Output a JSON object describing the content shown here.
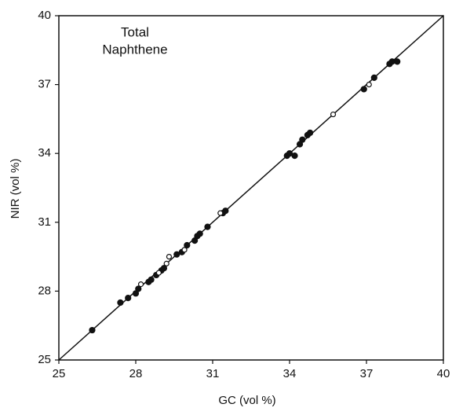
{
  "chart_data": {
    "type": "scatter",
    "annotation": [
      "Total",
      "Naphthene"
    ],
    "x_label": "GC (vol %)",
    "y_label": "NIR (vol %)",
    "xlim": [
      25,
      40
    ],
    "ylim": [
      25,
      40
    ],
    "xticks": [
      25,
      28,
      31,
      34,
      37,
      40
    ],
    "yticks": [
      25,
      28,
      31,
      34,
      37,
      40
    ],
    "identity_line": true,
    "series": [
      {
        "color": "#111111",
        "filled": true,
        "x": [
          26.3,
          27.4,
          27.7,
          28.0,
          28.1,
          28.5,
          28.6,
          28.8,
          29.0,
          29.1,
          29.6,
          29.8,
          30.0,
          30.3,
          30.4,
          30.5,
          30.8,
          31.4,
          31.5,
          33.9,
          34.0,
          34.2,
          34.4,
          34.5,
          34.7,
          34.8,
          36.9,
          37.3,
          37.9,
          38.0,
          38.2
        ],
        "values": [
          26.3,
          27.5,
          27.7,
          27.9,
          28.1,
          28.4,
          28.5,
          28.7,
          28.9,
          29.0,
          29.6,
          29.7,
          30.0,
          30.2,
          30.4,
          30.5,
          30.8,
          31.4,
          31.5,
          33.9,
          34.0,
          33.9,
          34.4,
          34.6,
          34.8,
          34.9,
          36.8,
          37.3,
          37.9,
          38.0,
          38.0
        ]
      },
      {
        "color": "#111111",
        "filled": false,
        "x": [
          28.2,
          28.9,
          29.2,
          29.3,
          29.9,
          31.3,
          35.7,
          37.1
        ],
        "values": [
          28.3,
          28.8,
          29.2,
          29.5,
          29.8,
          31.4,
          35.7,
          37.0
        ]
      }
    ]
  }
}
